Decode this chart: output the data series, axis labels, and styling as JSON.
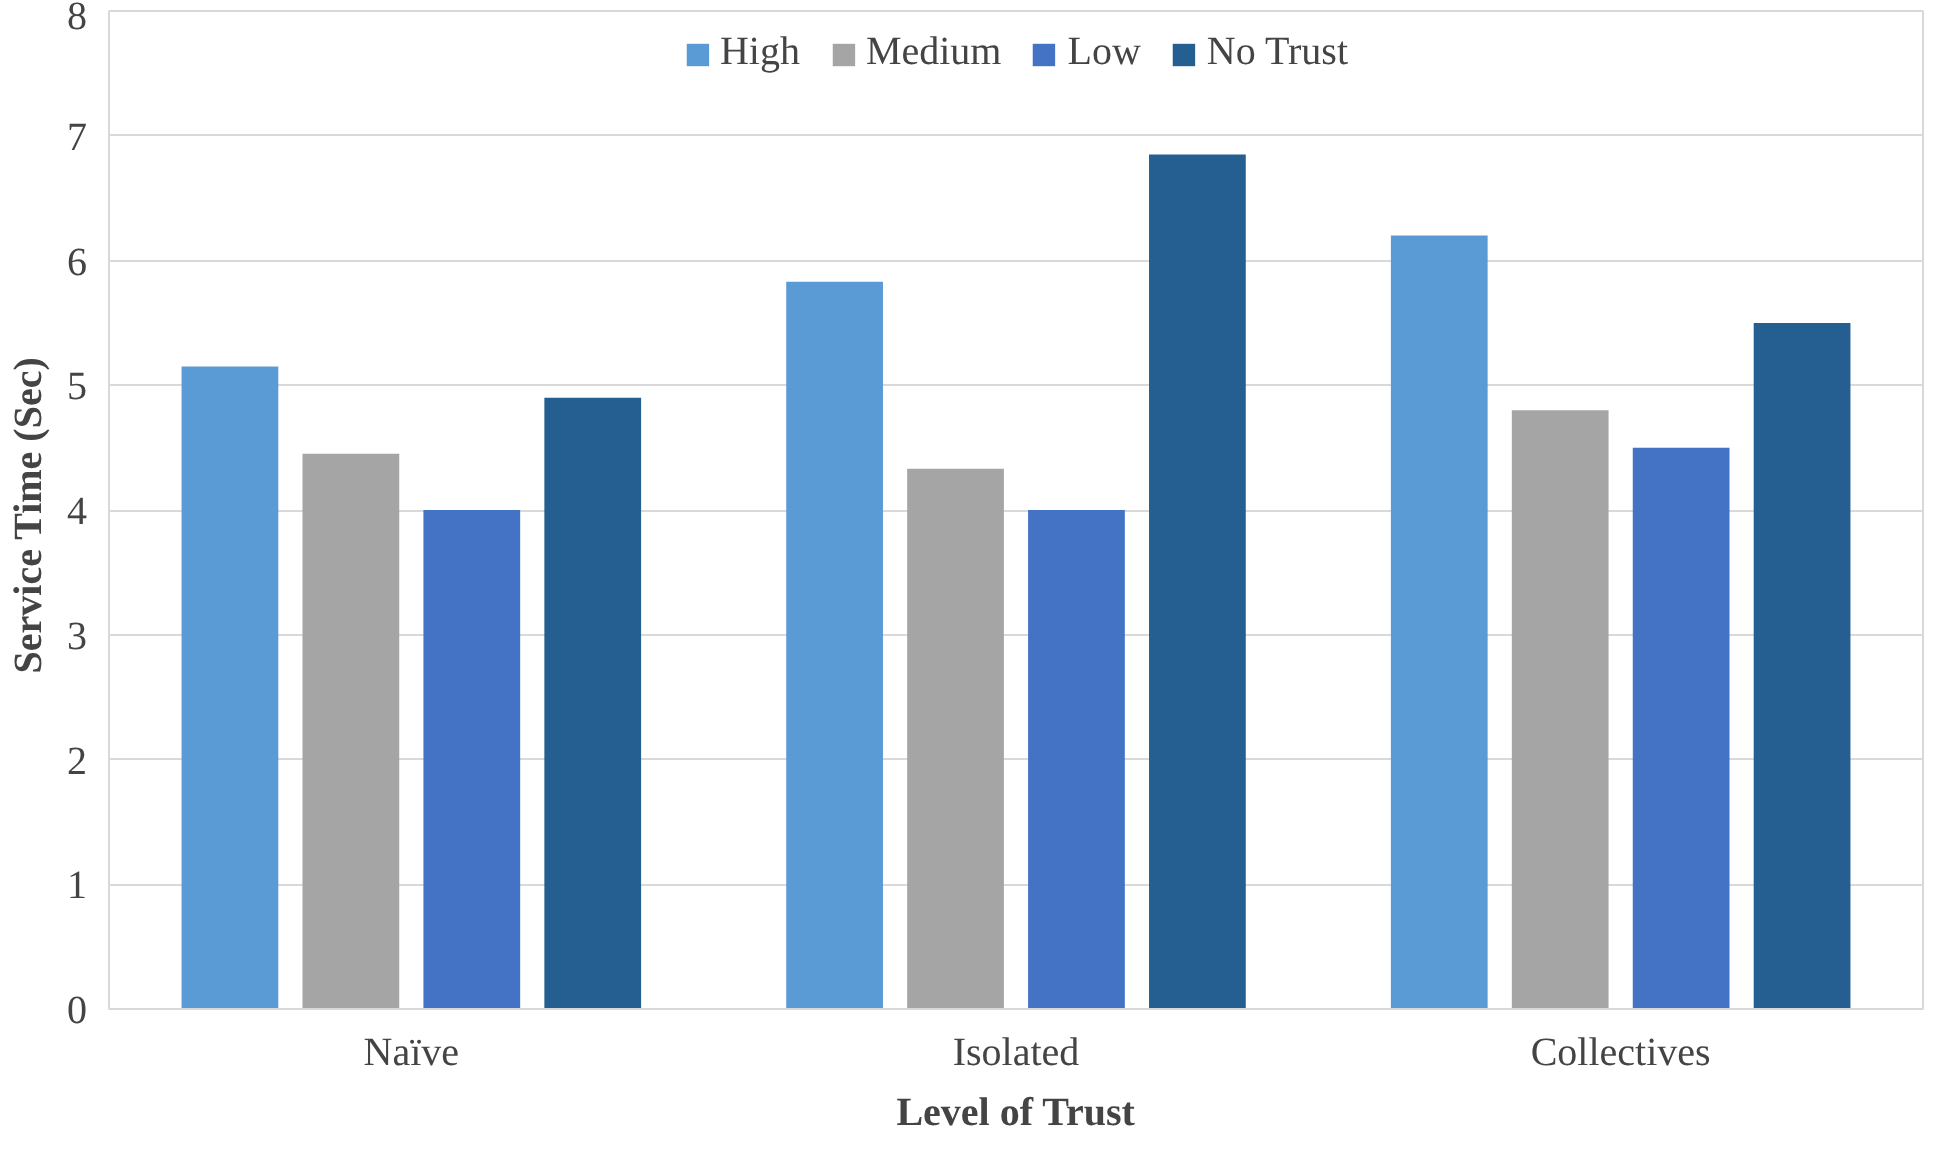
{
  "chart_data": {
    "type": "bar",
    "xlabel": "Level of Trust",
    "ylabel": "Service Time  (Sec)",
    "categories": [
      "Naïve",
      "Isolated",
      "Collectives"
    ],
    "series": [
      {
        "name": "High",
        "color": "#5b9bd5",
        "values": [
          5.15,
          5.83,
          6.2
        ]
      },
      {
        "name": "Medium",
        "color": "#a5a5a5",
        "values": [
          4.45,
          4.33,
          4.8
        ]
      },
      {
        "name": "Low",
        "color": "#4472c4",
        "values": [
          4.0,
          4.0,
          4.5
        ]
      },
      {
        "name": "No Trust",
        "color": "#255e91",
        "values": [
          4.9,
          6.85,
          5.5
        ]
      }
    ],
    "ylim": [
      0,
      8
    ],
    "yticks": [
      0,
      1,
      2,
      3,
      4,
      5,
      6,
      7,
      8
    ],
    "grid": "y",
    "legend": "top"
  }
}
